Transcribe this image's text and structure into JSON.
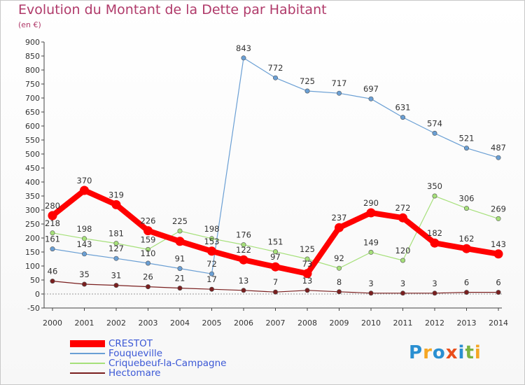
{
  "header": {
    "title": "Evolution du Montant de la Dette par Habitant",
    "subtitle": "(en €)"
  },
  "logo": {
    "text": "Proxiti",
    "colors": [
      "#2a8fd1",
      "#f5a623",
      "#2a8fd1",
      "#e94e1b",
      "#2a8fd1",
      "#7cb342",
      "#f5a623"
    ]
  },
  "chart_data": {
    "type": "line",
    "title": "Evolution du Montant de la Dette par Habitant",
    "subtitle": "(en €)",
    "x": [
      "2000",
      "2001",
      "2002",
      "2003",
      "2004",
      "2005",
      "2006",
      "2007",
      "2008",
      "2009",
      "2010",
      "2011",
      "2012",
      "2013",
      "2014"
    ],
    "ylim": [
      -50,
      900
    ],
    "yticks": [
      -50,
      0,
      50,
      100,
      150,
      200,
      250,
      300,
      350,
      400,
      450,
      500,
      550,
      600,
      650,
      700,
      750,
      800,
      850,
      900
    ],
    "grid": false,
    "legend_position": "bottom-left",
    "series": [
      {
        "name": "CRESTOT",
        "color": "#ff0000",
        "values": [
          280,
          370,
          319,
          226,
          188,
          153,
          122,
          97,
          73,
          237,
          290,
          272,
          182,
          162,
          143
        ],
        "labels": [
          "280",
          "370",
          "319",
          "226",
          "",
          "153",
          "122",
          "97",
          "73",
          "237",
          "290",
          "272",
          "182",
          "162",
          "143"
        ]
      },
      {
        "name": "Fouqueville",
        "color": "#6a9fd4",
        "values": [
          161,
          143,
          127,
          110,
          91,
          72,
          843,
          772,
          725,
          717,
          697,
          631,
          574,
          521,
          487
        ],
        "labels": [
          "161",
          "143",
          "127",
          "110",
          "91",
          "72",
          "843",
          "772",
          "725",
          "717",
          "697",
          "631",
          "574",
          "521",
          "487"
        ]
      },
      {
        "name": "Criquebeuf-la-Campagne",
        "color": "#a6e07a",
        "values": [
          218,
          198,
          181,
          159,
          225,
          198,
          176,
          151,
          125,
          92,
          149,
          120,
          350,
          306,
          269
        ],
        "labels": [
          "218",
          "198",
          "181",
          "159",
          "225",
          "198",
          "176",
          "151",
          "125",
          "92",
          "149",
          "120",
          "350",
          "306",
          "269"
        ]
      },
      {
        "name": "Hectomare",
        "color": "#7a1f1f",
        "values": [
          46,
          35,
          31,
          26,
          21,
          17,
          13,
          7,
          13,
          8,
          3,
          3,
          3,
          6,
          6
        ],
        "labels": [
          "46",
          "35",
          "31",
          "26",
          "21",
          "17",
          "13",
          "7",
          "13",
          "8",
          "3",
          "3",
          "3",
          "6",
          "6"
        ]
      }
    ]
  }
}
